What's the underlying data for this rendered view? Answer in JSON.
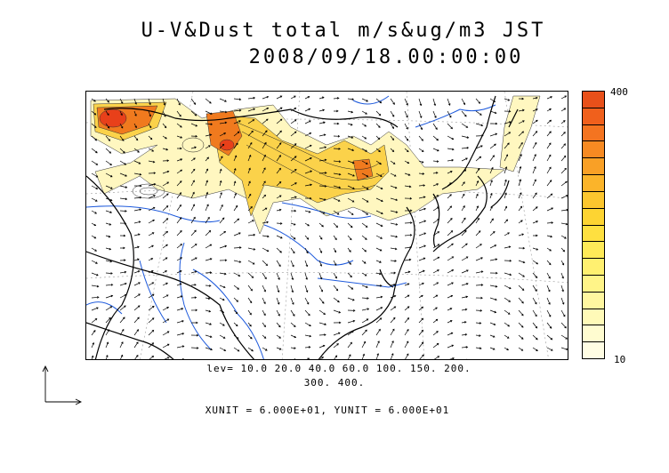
{
  "title": {
    "line1": "U-V&Dust total m/s&ug/m3 JST",
    "line2": "2008/09/18.00:00:00"
  },
  "colorbar": {
    "max_label": "400",
    "min_label": "10",
    "colors": [
      "#e8501a",
      "#f0601c",
      "#f47420",
      "#f78a22",
      "#f9a026",
      "#fbb42a",
      "#fcc62e",
      "#fdd432",
      "#fee040",
      "#feea58",
      "#fff070",
      "#fff488",
      "#fff7a0",
      "#fffab8",
      "#fffcd0",
      "#fffde4"
    ]
  },
  "contour_levels": {
    "line1": "lev= 10.0 20.0 40.0 60.0 100. 150. 200.",
    "line2": "300. 400."
  },
  "units": {
    "text": "XUNIT = 6.000E+01, YUNIT = 6.000E+01"
  },
  "colors": {
    "coast": "#000000",
    "river": "#1e5adc",
    "grid": "#888888",
    "dust_low": "#fff7c0",
    "dust_mid": "#fbd24a",
    "dust_high": "#f07a1e",
    "dust_max": "#e8401a"
  }
}
